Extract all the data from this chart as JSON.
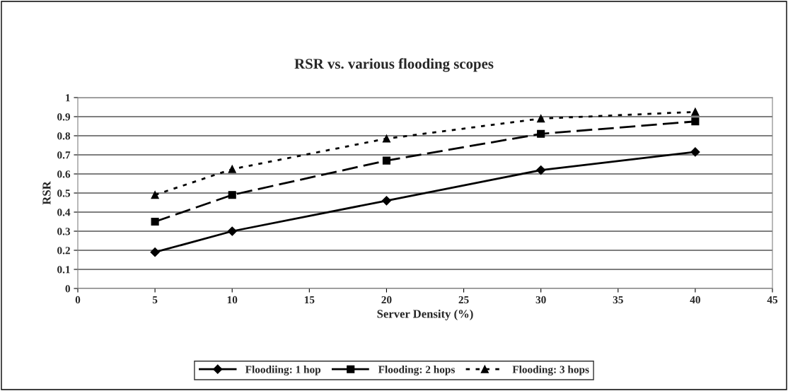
{
  "chart_data": {
    "type": "line",
    "title": "RSR vs. various flooding scopes",
    "xlabel": "Server Density (%)",
    "ylabel": "RSR",
    "x": [
      5,
      10,
      20,
      30,
      40
    ],
    "series": [
      {
        "name": "Floodiing: 1 hop",
        "color": "#000000",
        "marker": "diamond",
        "line_style": "solid",
        "values": [
          0.19,
          0.3,
          0.46,
          0.62,
          0.715
        ]
      },
      {
        "name": "Flooding: 2 hops",
        "color": "#000000",
        "marker": "square",
        "line_style": "dashed",
        "values": [
          0.35,
          0.49,
          0.67,
          0.81,
          0.875
        ]
      },
      {
        "name": "Flooding: 3 hops",
        "color": "#000000",
        "marker": "triangle",
        "line_style": "dotted",
        "values": [
          0.49,
          0.625,
          0.785,
          0.89,
          0.925
        ]
      }
    ],
    "xlim": [
      0,
      45
    ],
    "xticks": [
      0,
      5,
      10,
      15,
      20,
      25,
      30,
      35,
      40,
      45
    ],
    "ylim": [
      0,
      1
    ],
    "yticks": [
      0,
      0.1,
      0.2,
      0.3,
      0.4,
      0.5,
      0.6,
      0.7,
      0.8,
      0.9,
      1
    ],
    "grid": "y",
    "legend": "bottom"
  }
}
